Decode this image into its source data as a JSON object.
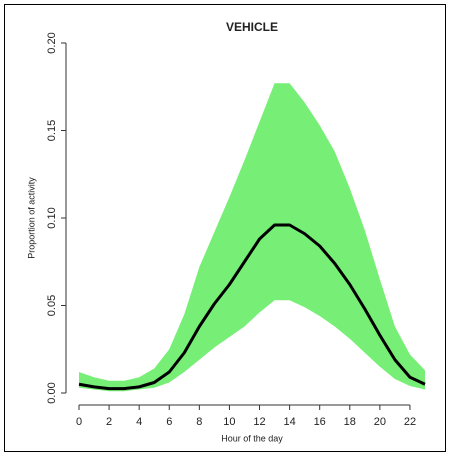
{
  "chart_data": {
    "type": "line",
    "title": "VEHICLE",
    "xlabel": "Hour of the day",
    "ylabel": "Proportion of activity",
    "x": [
      0,
      1,
      2,
      3,
      4,
      5,
      6,
      7,
      8,
      9,
      10,
      11,
      12,
      13,
      14,
      15,
      16,
      17,
      18,
      19,
      20,
      21,
      22,
      23
    ],
    "series": [
      {
        "color": "#000000",
        "values": [
          0.005,
          0.0035,
          0.0025,
          0.0025,
          0.0035,
          0.006,
          0.012,
          0.023,
          0.038,
          0.051,
          0.062,
          0.075,
          0.088,
          0.096,
          0.096,
          0.091,
          0.084,
          0.074,
          0.062,
          0.048,
          0.033,
          0.019,
          0.009,
          0.005
        ]
      }
    ],
    "band": {
      "color": "#77ef77",
      "upper": [
        0.012,
        0.009,
        0.007,
        0.007,
        0.009,
        0.014,
        0.025,
        0.045,
        0.072,
        0.092,
        0.112,
        0.133,
        0.155,
        0.177,
        0.177,
        0.166,
        0.153,
        0.138,
        0.117,
        0.093,
        0.065,
        0.038,
        0.022,
        0.013
      ],
      "lower": [
        0.003,
        0.002,
        0.001,
        0.001,
        0.002,
        0.003,
        0.006,
        0.012,
        0.019,
        0.026,
        0.032,
        0.038,
        0.046,
        0.053,
        0.053,
        0.049,
        0.044,
        0.038,
        0.031,
        0.023,
        0.015,
        0.008,
        0.004,
        0.002
      ]
    },
    "xlim": [
      0,
      23
    ],
    "ylim": [
      0,
      0.2
    ],
    "xticks": [
      0,
      2,
      4,
      6,
      8,
      10,
      12,
      14,
      16,
      18,
      20,
      22
    ],
    "yticks": [
      {
        "value": 0,
        "label": "0.00"
      },
      {
        "value": 0.05,
        "label": "0.05"
      },
      {
        "value": 0.1,
        "label": "0.10"
      },
      {
        "value": 0.15,
        "label": "0.15"
      },
      {
        "value": 0.2,
        "label": "0.20"
      }
    ]
  }
}
